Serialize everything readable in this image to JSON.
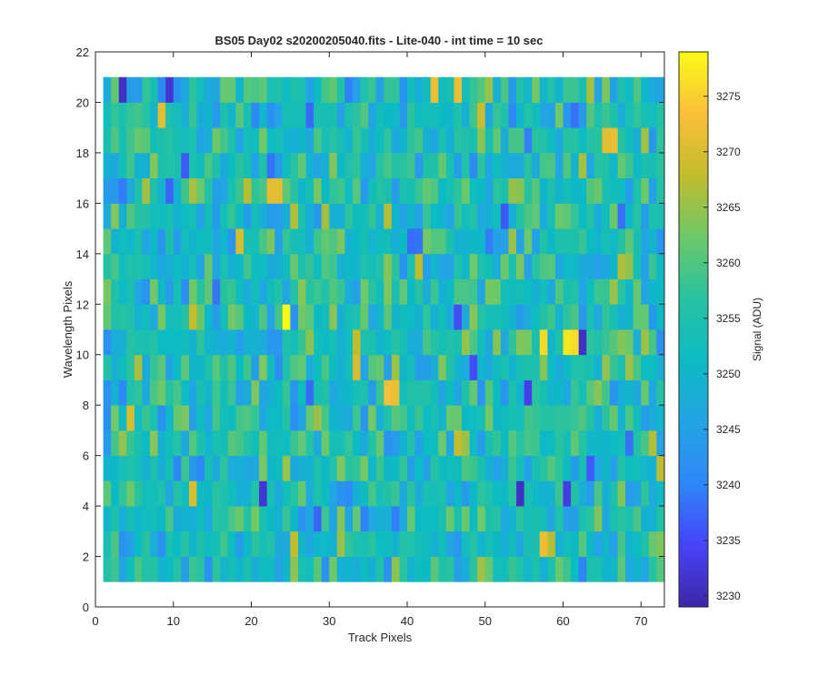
{
  "chart_data": {
    "type": "heatmap",
    "title": "BS05 Day02  s20200205040.fits - Lite-040 - int time = 10 sec",
    "xlabel": "Track Pixels",
    "ylabel": "Wavelength Pixels",
    "xlim": [
      0,
      73
    ],
    "ylim": [
      0,
      22
    ],
    "xticks": [
      0,
      10,
      20,
      30,
      40,
      50,
      60,
      70
    ],
    "yticks": [
      0,
      2,
      4,
      6,
      8,
      10,
      12,
      14,
      16,
      18,
      20,
      22
    ],
    "columns": 72,
    "rows": 20,
    "colorbar": {
      "label": "Signal (ADU)",
      "range": [
        3229,
        3279
      ],
      "ticks": [
        3230,
        3235,
        3240,
        3245,
        3250,
        3255,
        3260,
        3265,
        3270,
        3275
      ],
      "colormap": [
        "#3e26a8",
        "#4743f8",
        "#2e87f7",
        "#23a4e4",
        "#0cbbc3",
        "#27c2a1",
        "#6ec869",
        "#c2bc2c",
        "#fbbf39",
        "#f9fb15"
      ]
    },
    "statistics": {
      "mean": 3253,
      "std": 6
    },
    "notable_cells": [
      {
        "x": 24,
        "y": 11,
        "value": 3279
      },
      {
        "x": 37,
        "y": 8,
        "value": 3273
      },
      {
        "x": 38,
        "y": 8,
        "value": 3272
      },
      {
        "x": 23,
        "y": 16,
        "value": 3271
      },
      {
        "x": 22,
        "y": 16,
        "value": 3271
      },
      {
        "x": 57,
        "y": 10,
        "value": 3276
      },
      {
        "x": 60,
        "y": 10,
        "value": 3277
      },
      {
        "x": 61,
        "y": 10,
        "value": 3276
      },
      {
        "x": 62,
        "y": 10,
        "value": 3231
      },
      {
        "x": 65,
        "y": 18,
        "value": 3271
      },
      {
        "x": 66,
        "y": 18,
        "value": 3272
      },
      {
        "x": 4,
        "y": 7,
        "value": 3270
      },
      {
        "x": 8,
        "y": 19,
        "value": 3271
      },
      {
        "x": 18,
        "y": 14,
        "value": 3270
      },
      {
        "x": 46,
        "y": 20,
        "value": 3272
      },
      {
        "x": 43,
        "y": 20,
        "value": 3272
      },
      {
        "x": 57,
        "y": 2,
        "value": 3272
      },
      {
        "x": 12,
        "y": 4,
        "value": 3270
      },
      {
        "x": 33,
        "y": 9,
        "value": 3270
      },
      {
        "x": 3,
        "y": 21,
        "value": 3231
      },
      {
        "x": 9,
        "y": 21,
        "value": 3232
      },
      {
        "x": 21,
        "y": 4,
        "value": 3232
      },
      {
        "x": 54,
        "y": 4,
        "value": 3231
      },
      {
        "x": 60,
        "y": 4,
        "value": 3233
      }
    ]
  }
}
